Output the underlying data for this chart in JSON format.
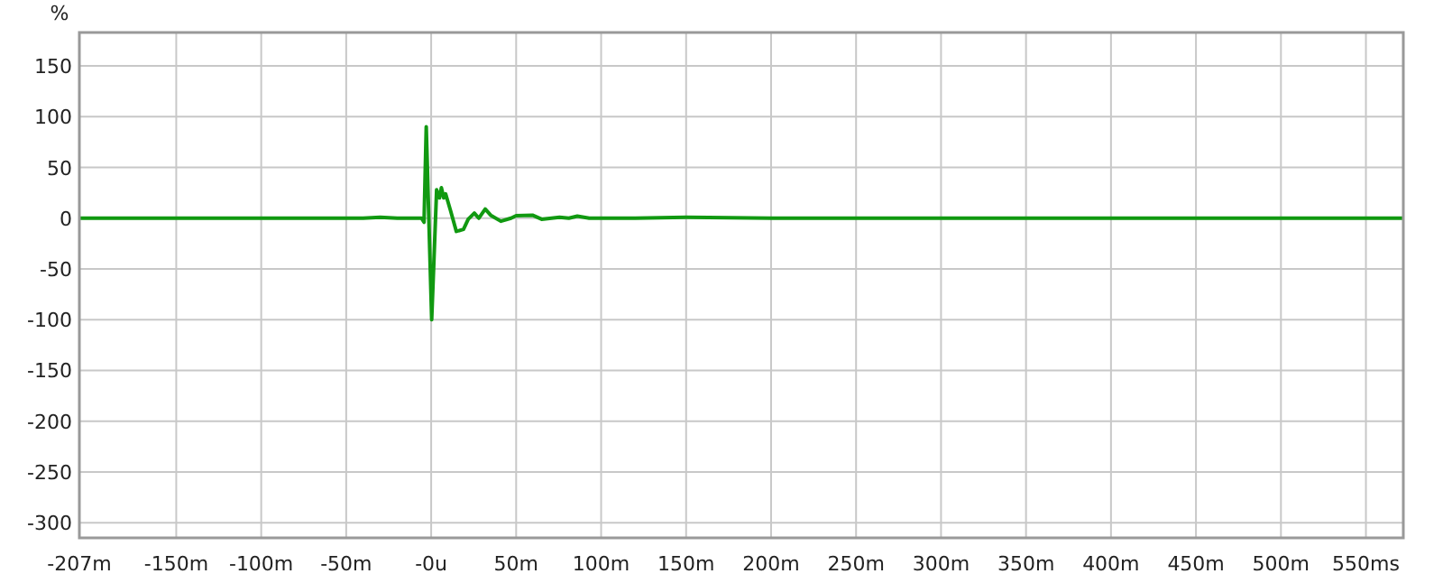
{
  "chart_data": {
    "type": "line",
    "ylabel": "%",
    "xlim": [
      -207,
      572
    ],
    "ylim": [
      -315,
      183
    ],
    "xticks": [
      {
        "value": -207,
        "label": "-207m"
      },
      {
        "value": -150,
        "label": "-150m"
      },
      {
        "value": -100,
        "label": "-100m"
      },
      {
        "value": -50,
        "label": "-50m"
      },
      {
        "value": 0,
        "label": "-0u"
      },
      {
        "value": 50,
        "label": "50m"
      },
      {
        "value": 100,
        "label": "100m"
      },
      {
        "value": 150,
        "label": "150m"
      },
      {
        "value": 200,
        "label": "200m"
      },
      {
        "value": 250,
        "label": "250m"
      },
      {
        "value": 300,
        "label": "300m"
      },
      {
        "value": 350,
        "label": "350m"
      },
      {
        "value": 400,
        "label": "400m"
      },
      {
        "value": 450,
        "label": "450m"
      },
      {
        "value": 500,
        "label": "500m"
      },
      {
        "value": 550,
        "label": "550ms"
      }
    ],
    "yticks": [
      -300,
      -250,
      -200,
      -150,
      -100,
      -50,
      0,
      50,
      100,
      150
    ],
    "grid": true,
    "line_style": "solid",
    "marker": "none",
    "series": [
      {
        "color": "#119911",
        "x": [
          -207,
          -100,
          -40,
          -30,
          -20,
          -10,
          -5.7,
          -4.2,
          -2.9,
          0.3,
          3.2,
          4.9,
          6,
          7.4,
          8.5,
          11.3,
          14.8,
          19,
          21.8,
          25.4,
          28,
          31.8,
          35,
          41,
          47,
          50,
          59.6,
          65,
          75.5,
          81,
          86,
          93,
          120,
          150,
          200,
          300,
          400,
          572
        ],
        "values": [
          0,
          0,
          0,
          1,
          0,
          0,
          0,
          -4,
          90,
          -100,
          28,
          20,
          30,
          20,
          24,
          8,
          -13,
          -11,
          -1,
          5,
          0,
          9,
          3,
          -3,
          0,
          2.5,
          3,
          -1,
          1,
          0,
          2,
          0,
          0,
          1,
          0,
          0,
          0,
          0
        ]
      }
    ]
  }
}
